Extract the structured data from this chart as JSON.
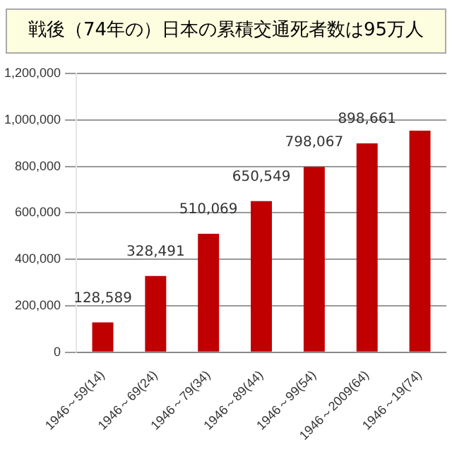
{
  "chart_data": {
    "type": "bar",
    "title": "戦後（74年の）日本の累積交通死者数は95万人",
    "categories": [
      "1946～59(14)",
      "1946～69(24)",
      "1946～79(34)",
      "1946～89(44)",
      "1946～99(54)",
      "1946～2009(64)",
      "1946～19(74)"
    ],
    "values": [
      128589,
      328491,
      510069,
      650549,
      798067,
      898661,
      954000
    ],
    "value_labels": [
      "128,589",
      "328,491",
      "510,069",
      "650,549",
      "798,067",
      "898,661",
      null
    ],
    "color": "#c00000",
    "ylim": [
      0,
      1200000
    ],
    "yticks": [
      0,
      {
        "value": 200000,
        "label": "200,000"
      },
      {
        "value": 400000,
        "label": "400,000"
      },
      {
        "value": 600000,
        "label": "600,000"
      },
      {
        "value": 800000,
        "label": "800,000"
      },
      {
        "value": 1000000,
        "label": "1,000,000"
      },
      {
        "value": 1200000,
        "label": "1,200,000"
      }
    ],
    "grid": "y",
    "legend": false
  }
}
